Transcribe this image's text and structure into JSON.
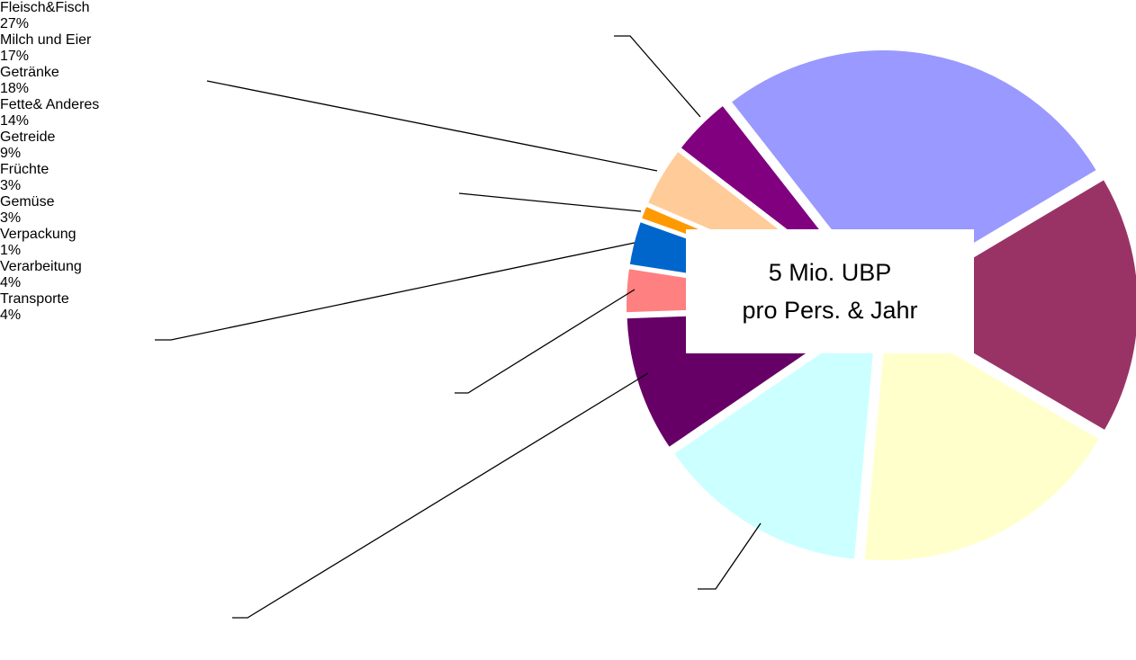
{
  "chart_data": {
    "type": "pie",
    "categories": [
      "Fleisch&Fisch",
      "Milch und Eier",
      "Getränke",
      "Fette& Anderes",
      "Getreide",
      "Früchte",
      "Gemüse",
      "Verpackung",
      "Verarbeitung",
      "Transporte"
    ],
    "values": [
      27,
      17,
      18,
      14,
      9,
      3,
      3,
      1,
      4,
      4
    ],
    "value_labels": [
      "27%",
      "17%",
      "18%",
      "14%",
      "9%",
      "3%",
      "3%",
      "1%",
      "4%",
      "4%"
    ],
    "colors": [
      "#9999ff",
      "#993366",
      "#ffffcc",
      "#ccffff",
      "#660066",
      "#ff8080",
      "#0066cc",
      "#ff9900",
      "#ffcc99",
      "#800080"
    ],
    "center_label": [
      "5 Mio. UBP",
      "pro Pers. & Jahr"
    ]
  }
}
